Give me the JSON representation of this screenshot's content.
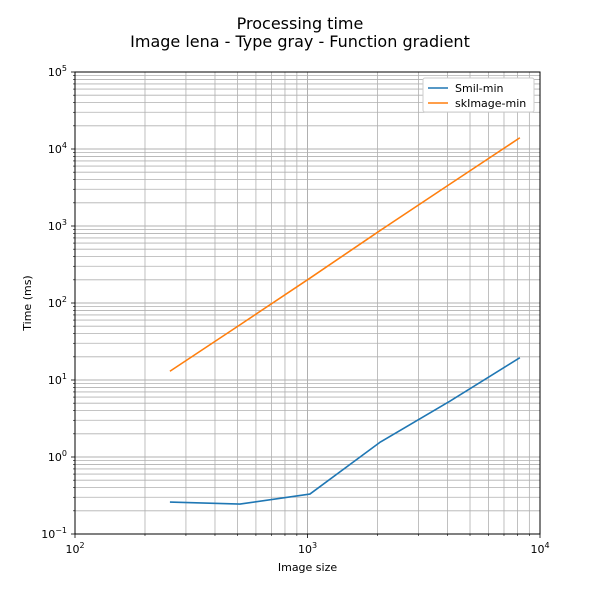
{
  "chart_data": {
    "type": "line",
    "title": "Processing time",
    "subtitle": "Image lena - Type gray - Function gradient",
    "xlabel": "Image size",
    "ylabel": "Time (ms)",
    "xscale": "log",
    "yscale": "log",
    "xlim": [
      100,
      10000
    ],
    "ylim": [
      0.1,
      100000
    ],
    "x_ticks": [
      {
        "value": 100,
        "base": "10",
        "exp": "2"
      },
      {
        "value": 1000,
        "base": "10",
        "exp": "3"
      },
      {
        "value": 10000,
        "base": "10",
        "exp": "4"
      }
    ],
    "y_ticks": [
      {
        "value": 0.1,
        "base": "10",
        "exp": "−1"
      },
      {
        "value": 1,
        "base": "10",
        "exp": "0"
      },
      {
        "value": 10,
        "base": "10",
        "exp": "1"
      },
      {
        "value": 100,
        "base": "10",
        "exp": "2"
      },
      {
        "value": 1000,
        "base": "10",
        "exp": "3"
      },
      {
        "value": 10000,
        "base": "10",
        "exp": "4"
      },
      {
        "value": 100000,
        "base": "10",
        "exp": "5"
      }
    ],
    "grid": true,
    "grid_minor": true,
    "legend_position": "top-right",
    "x": [
      256,
      512,
      1024,
      2048,
      4096,
      8192
    ],
    "series": [
      {
        "name": "Smil-min",
        "color": "#1f77b4",
        "values": [
          0.26,
          0.245,
          0.33,
          1.55,
          5.3,
          19.5
        ]
      },
      {
        "name": "skImage-min",
        "color": "#ff7f0e",
        "values": [
          13,
          52,
          210,
          870,
          3500,
          14000
        ]
      }
    ]
  }
}
